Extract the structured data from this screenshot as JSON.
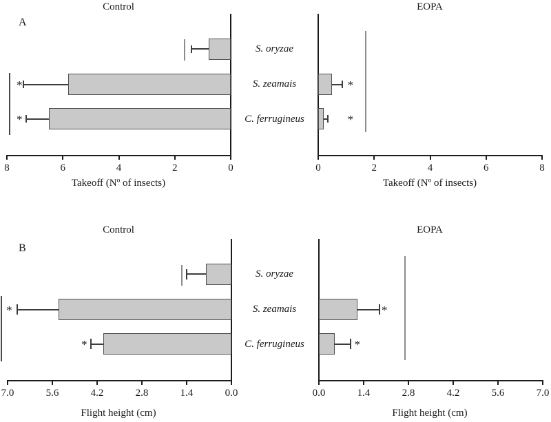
{
  "colors": {
    "bar_fill": "#c9c9c9",
    "bar_border": "#4f4f4f",
    "axis": "#1c1c1c",
    "error_bar": "#3d3d3d",
    "reference_line_gray": "#8c8c8c",
    "reference_line_dark": "#4a4a4a",
    "text": "#1a1a1a"
  },
  "chart_data": [
    {
      "type": "bar",
      "panel": "A",
      "orientation": "horizontal-mirrored",
      "categories": [
        "S. oryzae",
        "S. zeamais",
        "C. ferrugineus"
      ],
      "xlabel": "Takeoff (Nº of insects)",
      "axis_max": 8,
      "charts": [
        {
          "title": "Control",
          "side": "left",
          "ticks": [
            {
              "label": "8",
              "value": 8
            },
            {
              "label": "6",
              "value": 6
            },
            {
              "label": "4",
              "value": 4
            },
            {
              "label": "2",
              "value": 2
            },
            {
              "label": "0",
              "value": 0
            }
          ],
          "bars": [
            {
              "category": "S. oryzae",
              "value": 0.8,
              "error": 0.6,
              "asterisk_value": null
            },
            {
              "category": "S. zeamais",
              "value": 5.8,
              "error": 1.6,
              "asterisk_value": 7.55
            },
            {
              "category": "C. ferrugineus",
              "value": 6.5,
              "error": 0.8,
              "asterisk_value": 7.55
            }
          ],
          "reference_lines": [
            {
              "value": 1.65,
              "span": [
                0.18,
                0.33
              ],
              "shade": "gray"
            },
            {
              "value": 7.9,
              "span": [
                0.42,
                0.86
              ],
              "shade": "dark"
            }
          ]
        },
        {
          "title": "EOPA",
          "side": "right",
          "ticks": [
            {
              "label": "0",
              "value": 0
            },
            {
              "label": "2",
              "value": 2
            },
            {
              "label": "4",
              "value": 4
            },
            {
              "label": "6",
              "value": 6
            },
            {
              "label": "8",
              "value": 8
            }
          ],
          "bars": [
            {
              "category": "S. oryzae",
              "value": 0,
              "error": 0,
              "asterisk_value": null
            },
            {
              "category": "S. zeamais",
              "value": 0.5,
              "error": 0.35,
              "asterisk_value": 1.15
            },
            {
              "category": "C. ferrugineus",
              "value": 0.2,
              "error": 0.15,
              "asterisk_value": 1.15
            }
          ],
          "reference_lines": [
            {
              "value": 1.7,
              "span": [
                0.12,
                0.84
              ],
              "shade": "gray"
            }
          ]
        }
      ]
    },
    {
      "type": "bar",
      "panel": "B",
      "orientation": "horizontal-mirrored",
      "categories": [
        "S. oryzae",
        "S. zeamais",
        "C. ferrugineus"
      ],
      "xlabel": "Flight height (cm)",
      "axis_max": 7,
      "charts": [
        {
          "title": "Control",
          "side": "left",
          "ticks": [
            {
              "label": "7.0",
              "value": 7
            },
            {
              "label": "5.6",
              "value": 5.6
            },
            {
              "label": "4.2",
              "value": 4.2
            },
            {
              "label": "2.8",
              "value": 2.8
            },
            {
              "label": "1.4",
              "value": 1.4
            },
            {
              "label": "0.0",
              "value": 0
            }
          ],
          "bars": [
            {
              "category": "S. oryzae",
              "value": 0.8,
              "error": 0.6,
              "asterisk_value": null
            },
            {
              "category": "S. zeamais",
              "value": 5.4,
              "error": 1.3,
              "asterisk_value": 6.95
            },
            {
              "category": "C. ferrugineus",
              "value": 4.0,
              "error": 0.4,
              "asterisk_value": 4.6
            }
          ],
          "reference_lines": [
            {
              "value": 1.55,
              "span": [
                0.185,
                0.33
              ],
              "shade": "gray"
            },
            {
              "value": 7.2,
              "span": [
                0.405,
                0.868
              ],
              "shade": "dark"
            }
          ]
        },
        {
          "title": "EOPA",
          "side": "right",
          "ticks": [
            {
              "label": "0.0",
              "value": 0
            },
            {
              "label": "1.4",
              "value": 1.4
            },
            {
              "label": "2.8",
              "value": 2.8
            },
            {
              "label": "4.2",
              "value": 4.2
            },
            {
              "label": "5.6",
              "value": 5.6
            },
            {
              "label": "7.0",
              "value": 7
            }
          ],
          "bars": [
            {
              "category": "S. oryzae",
              "value": 0,
              "error": 0,
              "asterisk_value": null
            },
            {
              "category": "S. zeamais",
              "value": 1.2,
              "error": 0.7,
              "asterisk_value": 2.05
            },
            {
              "category": "C. ferrugineus",
              "value": 0.5,
              "error": 0.5,
              "asterisk_value": 1.2
            }
          ],
          "reference_lines": [
            {
              "value": 2.7,
              "span": [
                0.122,
                0.859
              ],
              "shade": "gray"
            }
          ]
        }
      ]
    }
  ]
}
